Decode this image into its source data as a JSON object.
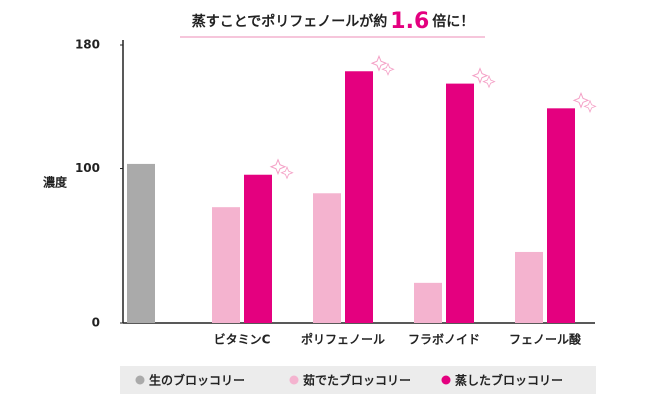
{
  "chart_data": {
    "type": "bar",
    "title_before": "蒸すことでポリフェノールが約",
    "title_highlight": "1.6",
    "title_after": "倍に！",
    "ylabel": "濃度",
    "categories": [
      null,
      "ビタミンC",
      "ポリフェノール",
      "フラボノイド",
      "フェノール酸"
    ],
    "series": [
      {
        "name": "生のブロッコリー",
        "color": "#aaaaaa",
        "values": [
          103,
          null,
          null,
          null,
          null
        ]
      },
      {
        "name": "茹でたブロッコリー",
        "color": "#f4b3cf",
        "values": [
          null,
          75,
          84,
          26,
          46
        ]
      },
      {
        "name": "蒸したブロッコリー",
        "color": "#e4007f",
        "values": [
          null,
          96,
          163,
          155,
          139
        ]
      }
    ],
    "ylim": [
      0,
      180
    ],
    "yticks": [
      0,
      100,
      180
    ],
    "grid": false
  }
}
